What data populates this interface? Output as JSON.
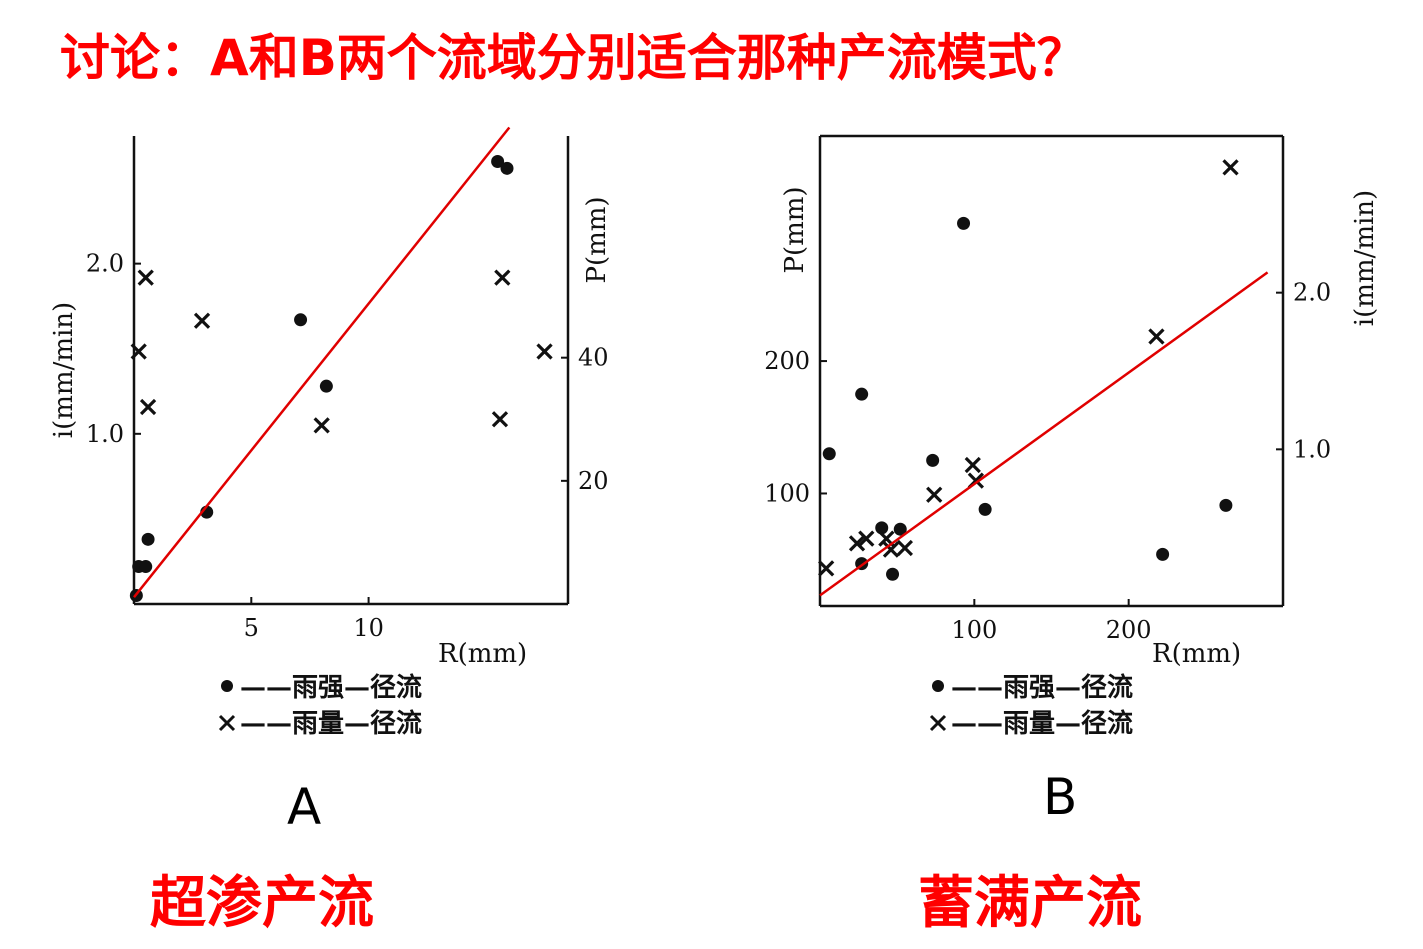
{
  "title": "讨论：A和B两个流域分别适合那种产流模式？",
  "panels": [
    {
      "letter": "A",
      "mode": "超渗产流"
    },
    {
      "letter": "B",
      "mode": "蓄满产流"
    }
  ],
  "legend": {
    "dot": "——雨强—径流",
    "cross": "——雨量—径流"
  },
  "chart_data": [
    {
      "type": "scatter",
      "panel": "A",
      "xlabel": "R(mm)",
      "ylabel_left": "i(mm/min)",
      "ylabel_right": "P(mm)",
      "x_ticks": [
        5,
        10
      ],
      "y_left_ticks": [
        "1.0",
        "2.0"
      ],
      "y_right_ticks": [
        20,
        40
      ],
      "xlim": [
        0,
        18.5
      ],
      "ylim_left": [
        0,
        2.75
      ],
      "ylim_right": [
        0,
        76
      ],
      "series": [
        {
          "name": "雨强—径流",
          "marker": "dot",
          "axis": "left",
          "x": [
            0.1,
            0.2,
            0.5,
            0.6,
            3.1,
            7.1,
            8.2,
            15.5,
            15.9
          ],
          "y": [
            0.05,
            0.22,
            0.22,
            0.38,
            0.54,
            1.67,
            1.28,
            2.6,
            2.56
          ]
        },
        {
          "name": "雨量—径流",
          "marker": "cross",
          "axis": "right",
          "x": [
            0.2,
            0.5,
            0.6,
            2.9,
            8.0,
            15.6,
            15.7,
            17.5
          ],
          "y": [
            41,
            53,
            32,
            46,
            29,
            30,
            53,
            41
          ]
        }
      ],
      "trendline": {
        "x": [
          0,
          16
        ],
        "y": [
          0.04,
          2.8
        ]
      }
    },
    {
      "type": "scatter",
      "panel": "B",
      "xlabel": "R(mm)",
      "ylabel_left": "P(mm)",
      "ylabel_right": "i(mm/min)",
      "x_ticks": [
        100,
        200
      ],
      "y_left_ticks": [
        100,
        200
      ],
      "y_right_ticks": [
        "1.0",
        "2.0"
      ],
      "xlim": [
        0,
        300
      ],
      "ylim_left": [
        15,
        370
      ],
      "ylim_right": [
        0,
        3.0
      ],
      "series": [
        {
          "name": "雨强—径流",
          "marker": "dot",
          "axis": "left",
          "x": [
            6,
            27,
            27,
            40,
            47,
            52,
            73,
            93,
            107,
            222,
            263
          ],
          "y": [
            130,
            175,
            47,
            74,
            39,
            73,
            125,
            304,
            88,
            54,
            91
          ]
        },
        {
          "name": "雨量—径流",
          "marker": "cross",
          "axis": "right",
          "x": [
            4,
            24,
            30,
            43,
            46,
            55,
            74,
            99,
            101,
            218,
            266
          ],
          "y": [
            0.24,
            0.4,
            0.43,
            0.43,
            0.36,
            0.37,
            0.71,
            0.9,
            0.8,
            1.72,
            2.8
          ]
        }
      ],
      "trendline": {
        "x": [
          0,
          290
        ],
        "y": [
          23,
          267
        ]
      }
    }
  ]
}
